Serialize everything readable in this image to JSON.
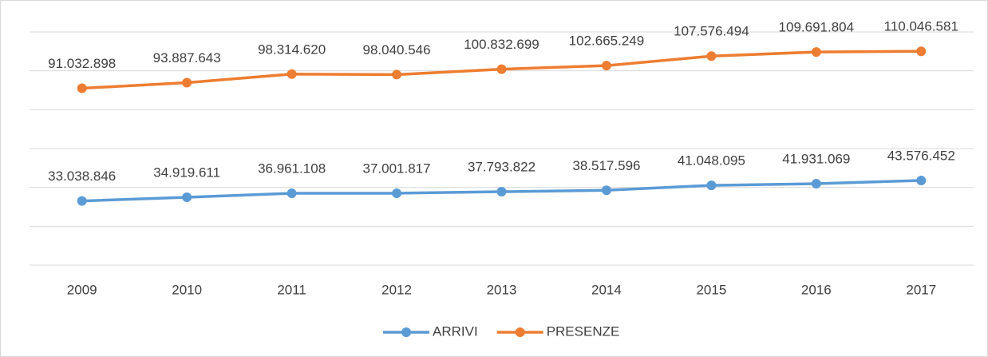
{
  "chart_data": {
    "type": "line",
    "categories": [
      "2009",
      "2010",
      "2011",
      "2012",
      "2013",
      "2014",
      "2015",
      "2016",
      "2017"
    ],
    "series": [
      {
        "name": "ARRIVI",
        "color": "#5b9bd5",
        "values": [
          33038846,
          34919611,
          36961108,
          37001817,
          37793822,
          38517596,
          41048095,
          41931069,
          43576452
        ],
        "value_labels": [
          "33.038.846",
          "34.919.611",
          "36.961.108",
          "37.001.817",
          "37.793.822",
          "38.517.596",
          "41.048.095",
          "41.931.069",
          "43.576.452"
        ]
      },
      {
        "name": "PRESENZE",
        "color": "#ed7d31",
        "values": [
          91032898,
          93887643,
          98314620,
          98040546,
          100832699,
          102665249,
          107576494,
          109691804,
          110046581
        ],
        "value_labels": [
          "91.032.898",
          "93.887.643",
          "98.314.620",
          "98.040.546",
          "100.832.699",
          "102.665.249",
          "107.576.494",
          "109.691.804",
          "110.046.581"
        ]
      }
    ],
    "ylim": [
      0,
      120000000
    ],
    "yticks": [
      0,
      20000000,
      40000000,
      60000000,
      80000000,
      100000000,
      120000000
    ],
    "grid": true,
    "legend": "bottom"
  }
}
